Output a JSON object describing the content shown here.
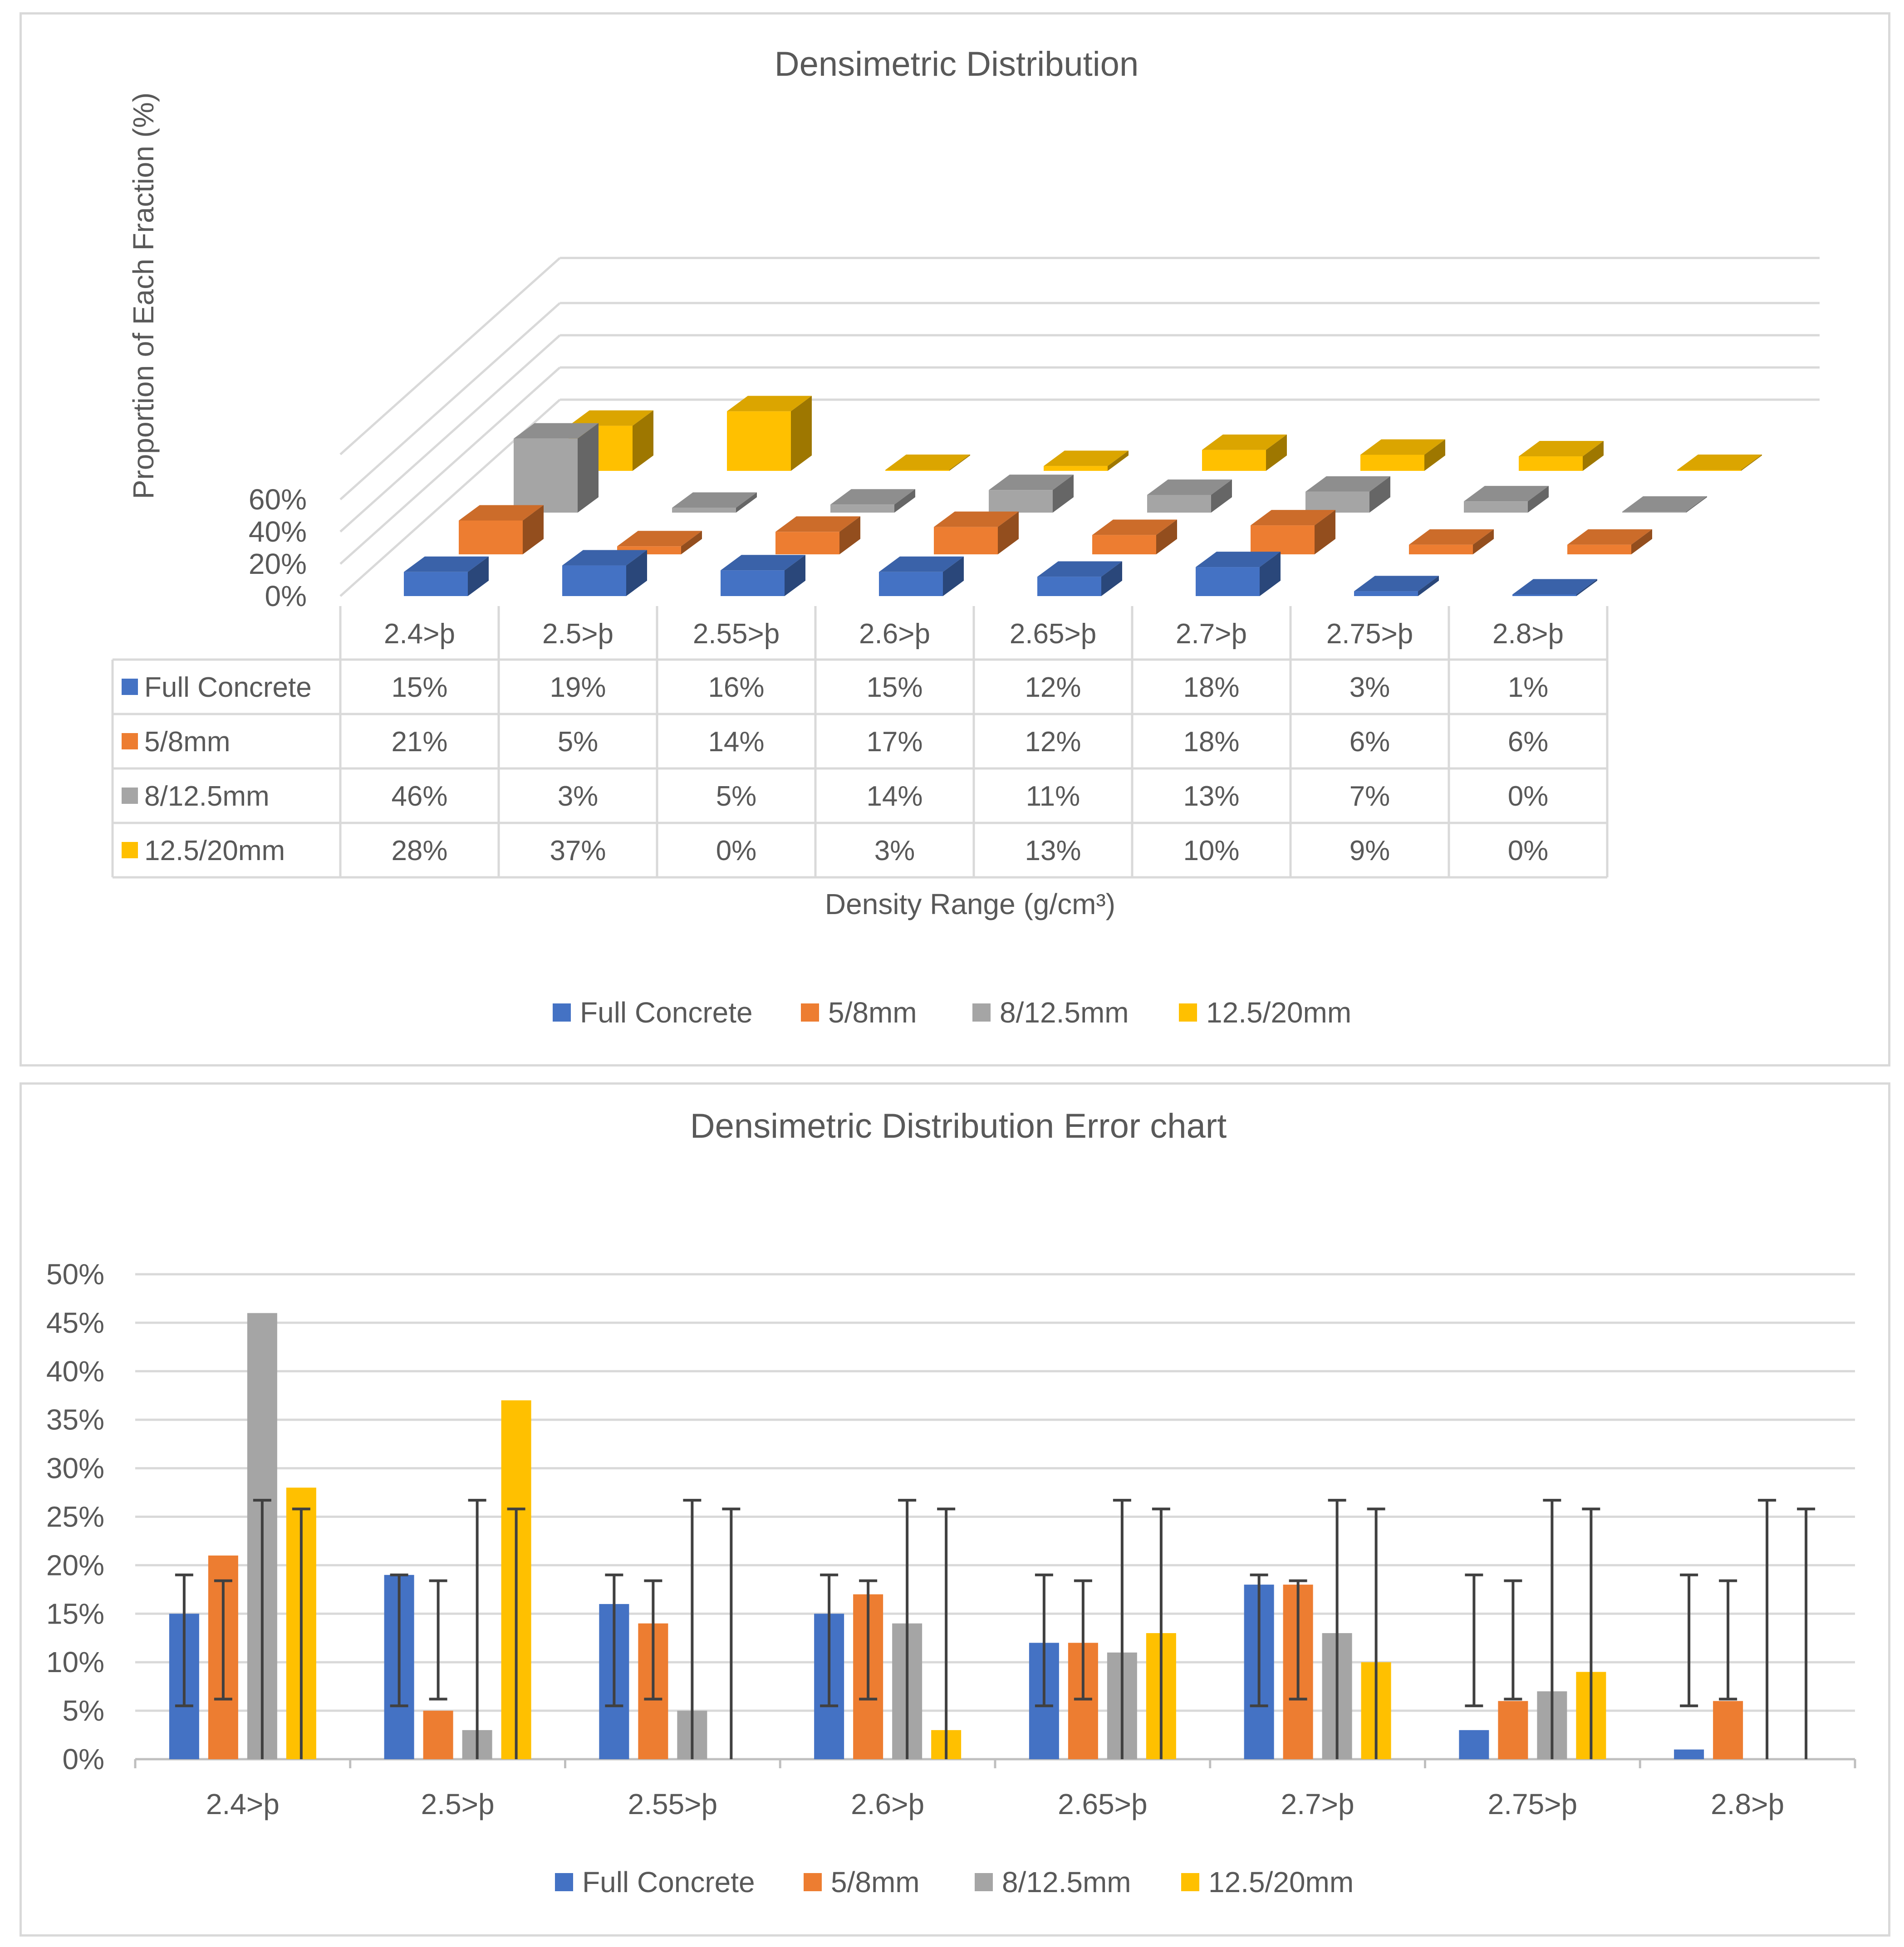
{
  "chart_data": [
    {
      "type": "bar",
      "variant": "3d-column-with-data-table",
      "title": "Densimetric Distribution",
      "xlabel": "Density Range (g/cm³)",
      "ylabel": "Proportion of Each Fraction (%)",
      "categories": [
        "2.4>þ",
        "2.5>þ",
        "2.55>þ",
        "2.6>þ",
        "2.65>þ",
        "2.7>þ",
        "2.75>þ",
        "2.8>þ"
      ],
      "y_ticks": [
        "0%",
        "20%",
        "40%",
        "60%"
      ],
      "ylim": [
        0,
        60
      ],
      "series": [
        {
          "name": "Full Concrete",
          "color": "#4472c4",
          "values": [
            15,
            19,
            16,
            15,
            12,
            18,
            3,
            1
          ],
          "labels": [
            "15%",
            "19%",
            "16%",
            "15%",
            "12%",
            "18%",
            "3%",
            "1%"
          ]
        },
        {
          "name": "5/8mm",
          "color": "#ed7d31",
          "values": [
            21,
            5,
            14,
            17,
            12,
            18,
            6,
            6
          ],
          "labels": [
            "21%",
            "5%",
            "14%",
            "17%",
            "12%",
            "18%",
            "6%",
            "6%"
          ]
        },
        {
          "name": "8/12.5mm",
          "color": "#a5a5a5",
          "values": [
            46,
            3,
            5,
            14,
            11,
            13,
            7,
            0
          ],
          "labels": [
            "46%",
            "3%",
            "5%",
            "14%",
            "11%",
            "13%",
            "7%",
            "0%"
          ]
        },
        {
          "name": "12.5/20mm",
          "color": "#ffc000",
          "values": [
            28,
            37,
            0,
            3,
            13,
            10,
            9,
            0
          ],
          "labels": [
            "28%",
            "37%",
            "0%",
            "3%",
            "13%",
            "10%",
            "9%",
            "0%"
          ]
        }
      ],
      "legend_position": "bottom",
      "grid": true
    },
    {
      "type": "bar",
      "variant": "clustered-column-with-error-bars",
      "title": "Densimetric Distribution Error chart",
      "categories": [
        "2.4>þ",
        "2.5>þ",
        "2.55>þ",
        "2.6>þ",
        "2.65>þ",
        "2.7>þ",
        "2.75>þ",
        "2.8>þ"
      ],
      "y_ticks": [
        "0%",
        "5%",
        "10%",
        "15%",
        "20%",
        "25%",
        "30%",
        "35%",
        "40%",
        "45%",
        "50%"
      ],
      "ylim": [
        0,
        50
      ],
      "series": [
        {
          "name": "Full Concrete",
          "color": "#4472c4",
          "values": [
            15,
            19,
            16,
            15,
            12,
            18,
            3,
            1
          ],
          "error_bar_range": [
            5.5,
            19
          ]
        },
        {
          "name": "5/8mm",
          "color": "#ed7d31",
          "values": [
            21,
            5,
            14,
            17,
            12,
            18,
            6,
            6
          ],
          "error_bar_range": [
            6.2,
            18.4
          ]
        },
        {
          "name": "8/12.5mm",
          "color": "#a5a5a5",
          "values": [
            46,
            3,
            5,
            14,
            11,
            13,
            7,
            0
          ],
          "error_bar_range": [
            0,
            26.7
          ]
        },
        {
          "name": "12.5/20mm",
          "color": "#ffc000",
          "values": [
            28,
            37,
            0,
            3,
            13,
            10,
            9,
            0
          ],
          "error_bar_range": [
            0,
            25.8
          ]
        }
      ],
      "legend_position": "bottom",
      "grid": true
    }
  ]
}
